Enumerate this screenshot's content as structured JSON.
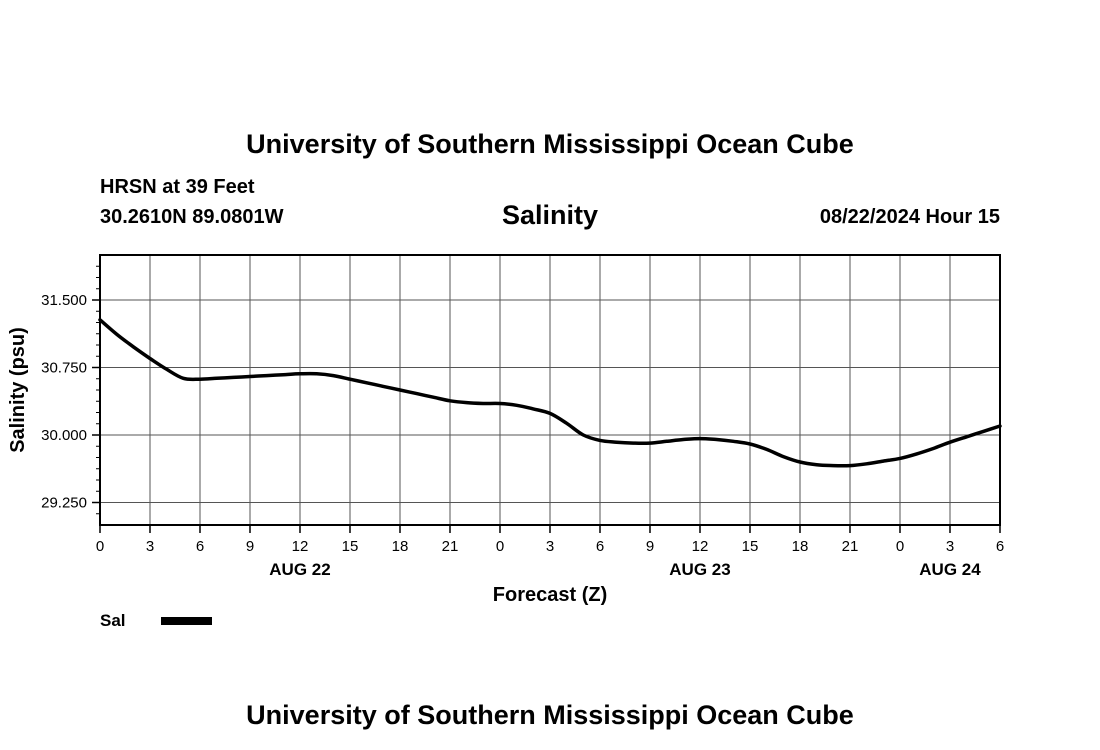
{
  "header": {
    "title": "University of Southern Mississippi Ocean Cube",
    "station": "HRSN at 39 Feet",
    "coords": "30.2610N  89.0801W",
    "variable": "Salinity",
    "datetime": "08/22/2024 Hour 15"
  },
  "footer": {
    "title": "University of Southern Mississippi Ocean Cube"
  },
  "chart_data": {
    "type": "line",
    "title": "Salinity",
    "xlabel": "Forecast (Z)",
    "ylabel": "Salinity (psu)",
    "xlim": [
      0,
      54
    ],
    "ylim": [
      29.0,
      32.0
    ],
    "x_ticks": [
      0,
      3,
      6,
      9,
      12,
      15,
      18,
      21,
      24,
      27,
      30,
      33,
      36,
      39,
      42,
      45,
      48,
      51,
      54
    ],
    "x_tick_labels": [
      "0",
      "3",
      "6",
      "9",
      "12",
      "15",
      "18",
      "21",
      "0",
      "3",
      "6",
      "9",
      "12",
      "15",
      "18",
      "21",
      "0",
      "3",
      "6"
    ],
    "y_ticks": [
      29.25,
      30.0,
      30.75,
      31.5
    ],
    "y_tick_labels": [
      "29.250",
      "30.000",
      "30.750",
      "31.500"
    ],
    "day_labels": [
      {
        "x": 12,
        "label": "AUG 22"
      },
      {
        "x": 36,
        "label": "AUG 23"
      },
      {
        "x": 51,
        "label": "AUG 24"
      }
    ],
    "grid": true,
    "series": [
      {
        "name": "Sal",
        "color": "#000000",
        "x": [
          0,
          1,
          2,
          3,
          4,
          5,
          6,
          7,
          8,
          9,
          10,
          11,
          12,
          13,
          14,
          15,
          16,
          17,
          18,
          19,
          20,
          21,
          22,
          23,
          24,
          25,
          26,
          27,
          28,
          29,
          30,
          31,
          32,
          33,
          34,
          35,
          36,
          37,
          38,
          39,
          40,
          41,
          42,
          43,
          44,
          45,
          46,
          47,
          48,
          49,
          50,
          51,
          52,
          53,
          54
        ],
        "values": [
          31.28,
          31.12,
          30.98,
          30.85,
          30.73,
          30.63,
          30.62,
          30.63,
          30.64,
          30.65,
          30.66,
          30.67,
          30.68,
          30.68,
          30.66,
          30.62,
          30.58,
          30.54,
          30.5,
          30.46,
          30.42,
          30.38,
          30.36,
          30.35,
          30.35,
          30.33,
          30.29,
          30.24,
          30.13,
          30.0,
          29.94,
          29.92,
          29.91,
          29.91,
          29.93,
          29.95,
          29.96,
          29.95,
          29.93,
          29.9,
          29.84,
          29.76,
          29.7,
          29.67,
          29.66,
          29.66,
          29.68,
          29.71,
          29.74,
          29.79,
          29.85,
          29.92,
          29.98,
          30.04,
          30.1
        ]
      }
    ],
    "legend": {
      "label": "Sal",
      "placement": "bottom-left"
    }
  }
}
